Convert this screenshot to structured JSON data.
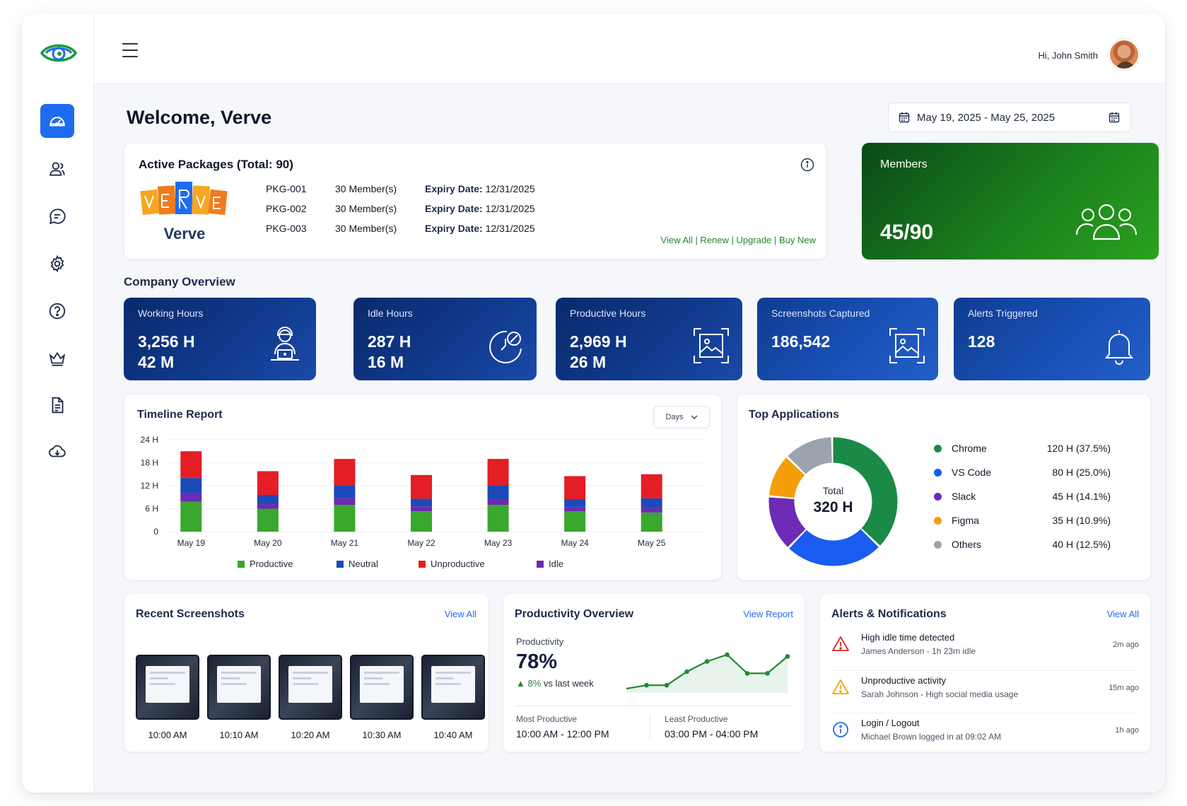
{
  "header": {
    "greeting": "Hi, John Smith"
  },
  "welcome": "Welcome, Verve",
  "date_range": "May 19, 2025 - May 25, 2025",
  "sidebar": {
    "items": [
      "dashboard-icon",
      "users-icon",
      "chat-icon",
      "settings-icon",
      "help-icon",
      "crown-icon",
      "document-icon",
      "cloud-download-icon"
    ]
  },
  "packages": {
    "title": "Active Packages (Total: 90)",
    "brand": "Verve",
    "rows": [
      {
        "id": "PKG-001",
        "members": "30 Member(s)",
        "expiry_label": "Expiry Date:",
        "expiry": "12/31/2025"
      },
      {
        "id": "PKG-002",
        "members": "30 Member(s)",
        "expiry_label": "Expiry Date:",
        "expiry": "12/31/2025"
      },
      {
        "id": "PKG-003",
        "members": "30 Member(s)",
        "expiry_label": "Expiry Date:",
        "expiry": "12/31/2025"
      }
    ],
    "links": "View All | Renew | Upgrade | Buy New"
  },
  "members": {
    "label": "Members",
    "value": "45/90"
  },
  "overview": {
    "title": "Company Overview",
    "stats": [
      {
        "label": "Working Hours",
        "value": "3,256 H\n42 M"
      },
      {
        "label": "Idle Hours",
        "value": "287 H\n16 M"
      },
      {
        "label": "Productive Hours",
        "value": "2,969 H\n26 M"
      },
      {
        "label": "Screenshots Captured",
        "value": "186,542"
      },
      {
        "label": "Alerts Triggered",
        "value": "128"
      }
    ]
  },
  "timeline": {
    "title": "Timeline Report",
    "period": "Days"
  },
  "chart_data": {
    "type": "bar",
    "stacked": true,
    "categories": [
      "May 19",
      "May 20",
      "May 21",
      "May 22",
      "May 23",
      "May 24",
      "May 25"
    ],
    "ylim": [
      0,
      24
    ],
    "yticks": [
      "0",
      "6 H",
      "12 H",
      "18 H",
      "24 H"
    ],
    "series": [
      {
        "name": "Productive",
        "color": "#3aa72e",
        "values": [
          7.8,
          6.0,
          7.0,
          5.3,
          7.0,
          5.3,
          5.0
        ]
      },
      {
        "name": "Idle",
        "color": "#6b2bb2",
        "values": [
          2.2,
          1.3,
          1.8,
          1.3,
          1.5,
          1.2,
          1.2
        ]
      },
      {
        "name": "Neutral",
        "color": "#1b49b8",
        "values": [
          4.0,
          2.3,
          3.2,
          2.0,
          3.5,
          2.0,
          2.5
        ]
      },
      {
        "name": "Unproductive",
        "color": "#e31e24",
        "values": [
          7.0,
          6.2,
          7.0,
          6.2,
          7.0,
          6.0,
          6.3
        ]
      }
    ],
    "legend": [
      "Productive",
      "Neutral",
      "Unproductive",
      "Idle"
    ],
    "grid": true,
    "legend_position": "bottom"
  },
  "top_apps": {
    "title": "Top Applications",
    "total_label": "Total",
    "total": "320 H",
    "apps": [
      {
        "name": "Chrome",
        "value": "120 H (37.5%)",
        "hours": 120,
        "color": "#1b8a47"
      },
      {
        "name": "VS Code",
        "value": "80 H (25.0%)",
        "hours": 80,
        "color": "#1a5cf0"
      },
      {
        "name": "Slack",
        "value": "45 H (14.1%)",
        "hours": 45,
        "color": "#6e2bb5"
      },
      {
        "name": "Figma",
        "value": "35 H (10.9%)",
        "hours": 35,
        "color": "#f59e0b"
      },
      {
        "name": "Others",
        "value": "40 H (12.5%)",
        "hours": 40,
        "color": "#9ca3af"
      }
    ]
  },
  "screenshots": {
    "title": "Recent Screenshots",
    "link": "View All",
    "items": [
      "10:00 AM",
      "10:10 AM",
      "10:20 AM",
      "10:30 AM",
      "10:40 AM"
    ]
  },
  "productivity": {
    "title": "Productivity Overview",
    "link": "View Report",
    "label": "Productivity",
    "value": "78%",
    "change": "▲ 8%",
    "change_suffix": "vs last week",
    "trend": [
      2,
      4,
      4,
      12,
      18,
      22,
      11,
      11,
      21
    ],
    "most_label": "Most Productive",
    "most": "10:00 AM - 12:00 PM",
    "least_label": "Least Productive",
    "least": "03:00 PM - 04:00 PM"
  },
  "alerts": {
    "title": "Alerts & Notifications",
    "link": "View All",
    "items": [
      {
        "title": "High idle time detected",
        "detail": "James Anderson - 1h 23m idle",
        "time": "2m ago",
        "icon": "warning-red-icon"
      },
      {
        "title": "Unproductive activity",
        "detail": "Sarah Johnson - High social media usage",
        "time": "15m ago",
        "icon": "warning-yellow-icon"
      },
      {
        "title": "Login / Logout",
        "detail": "Michael Brown logged in at 09:02 AM",
        "time": "1h ago",
        "icon": "info-icon"
      }
    ]
  }
}
